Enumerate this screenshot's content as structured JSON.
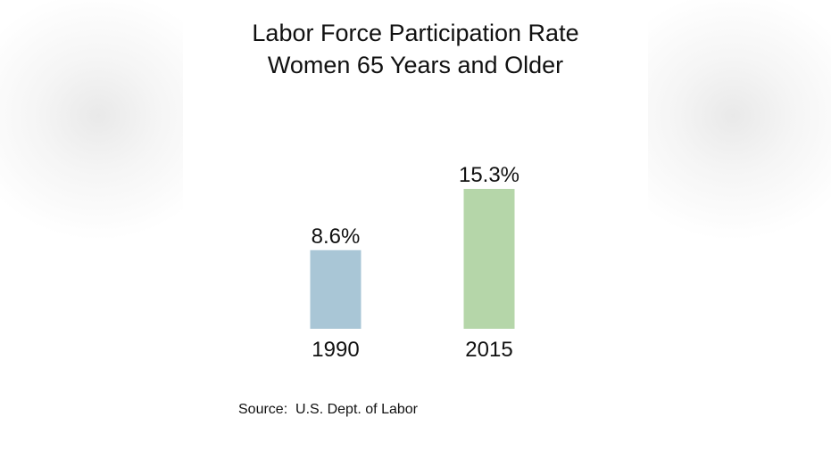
{
  "chart_data": {
    "type": "bar",
    "title_lines": [
      "Labor Force Participation Rate",
      "Women 65 Years and Older"
    ],
    "categories": [
      "1990",
      "2015"
    ],
    "values": [
      8.6,
      15.3
    ],
    "data_labels": [
      "8.6%",
      "15.3%"
    ],
    "colors": [
      "#a9c6d6",
      "#b5d6a9"
    ],
    "ylim": [
      0,
      15.3
    ],
    "grid": false,
    "source": "Source:  U.S. Dept. of Labor"
  }
}
